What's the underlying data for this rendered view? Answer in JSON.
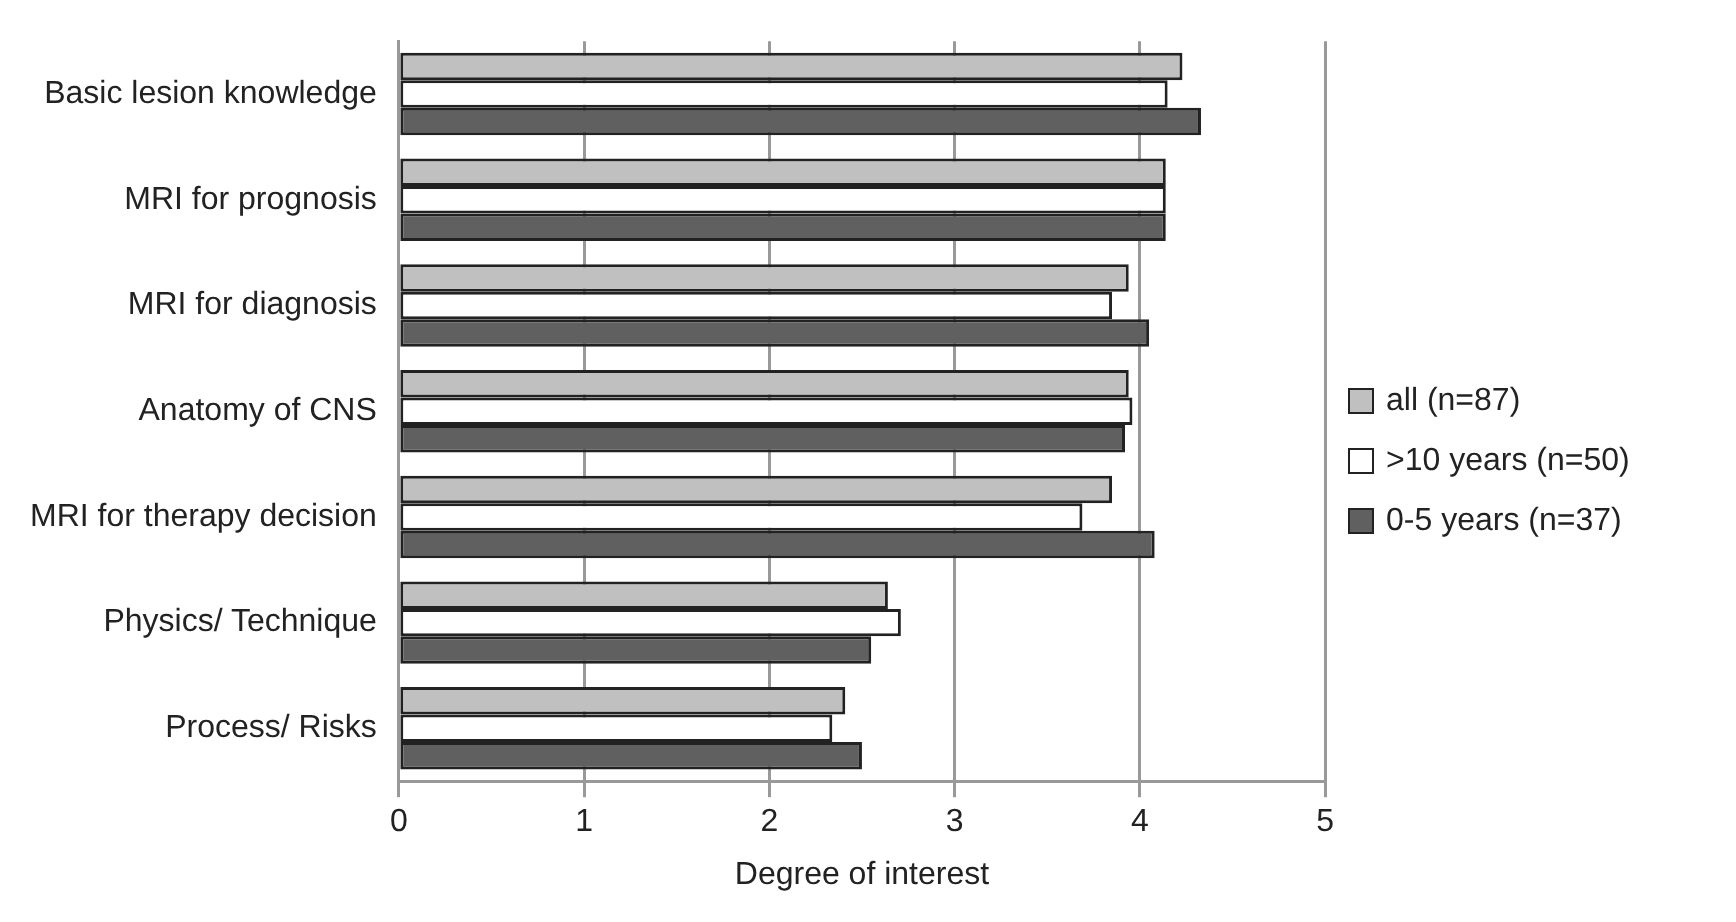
{
  "chart_data": {
    "type": "bar",
    "orientation": "horizontal",
    "xlabel": "Degree of interest",
    "categories": [
      "Basic lesion knowledge",
      "MRI for prognosis",
      "MRI for diagnosis",
      "Anatomy of CNS",
      "MRI for therapy decision",
      "Physics/ Technique",
      "Process/ Risks"
    ],
    "series": [
      {
        "name": "all (n=87)",
        "color": "#c0c0c0",
        "values": [
          4.23,
          4.14,
          3.94,
          3.94,
          3.85,
          2.64,
          2.41
        ]
      },
      {
        "name": ">10 years (n=50)",
        "color": "#ffffff",
        "values": [
          4.15,
          4.14,
          3.85,
          3.96,
          3.69,
          2.71,
          2.34
        ]
      },
      {
        "name": "0-5 years (n=37)",
        "color": "#606060",
        "values": [
          4.33,
          4.14,
          4.05,
          3.92,
          4.08,
          2.55,
          2.5
        ]
      }
    ],
    "xlim": [
      0,
      5
    ],
    "xticks": [
      0,
      1,
      2,
      3,
      4,
      5
    ],
    "grid": "x",
    "legend": "right"
  }
}
